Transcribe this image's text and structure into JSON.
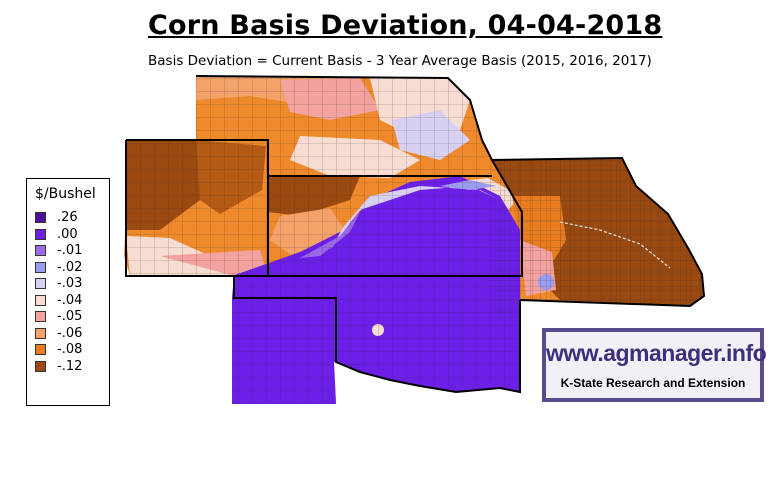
{
  "title": "Corn Basis Deviation, 04-04-2018",
  "subtitle": "Basis Deviation = Current Basis - 3 Year Average Basis (2015, 2016, 2017)",
  "legend": {
    "title": "$/Bushel",
    "items": [
      {
        "label": ".26",
        "color": "#4b0e9e"
      },
      {
        "label": ".00",
        "color": "#6c1fe6"
      },
      {
        "label": "-.01",
        "color": "#9b68e8"
      },
      {
        "label": "-.02",
        "color": "#9a9cf0"
      },
      {
        "label": "-.03",
        "color": "#d8d0f2"
      },
      {
        "label": "-.04",
        "color": "#f7dcd2"
      },
      {
        "label": "-.05",
        "color": "#f2a3a0"
      },
      {
        "label": "-.06",
        "color": "#f3a36a"
      },
      {
        "label": "-.08",
        "color": "#e87c1e"
      },
      {
        "label": "-.12",
        "color": "#9a4a10"
      }
    ]
  },
  "logo": {
    "site": "www.agmanager.info",
    "org": "K-State Research and Extension"
  }
}
